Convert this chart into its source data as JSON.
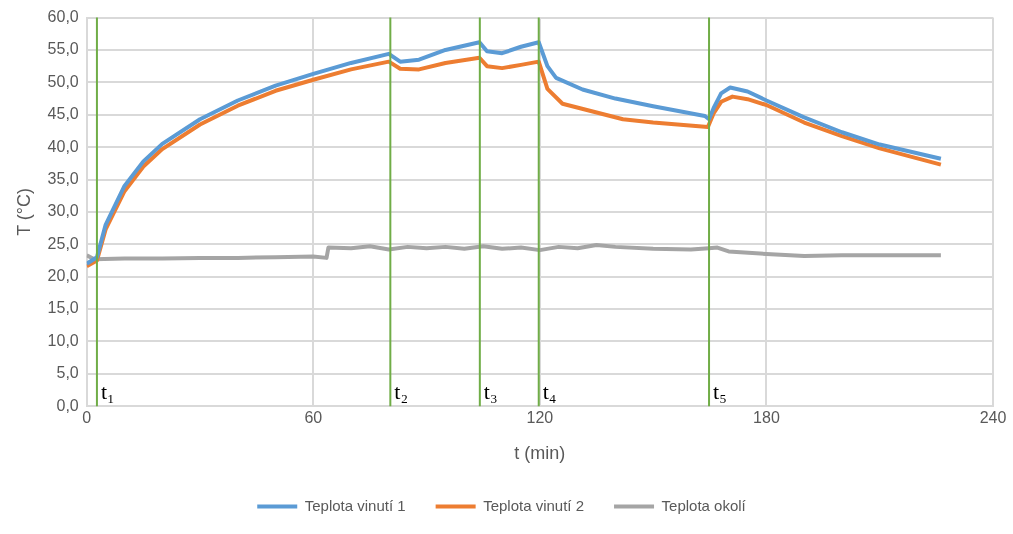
{
  "chart_data": {
    "type": "line",
    "xlabel": "t (min)",
    "ylabel": "T (°C)",
    "xlim": [
      0,
      240
    ],
    "xticks": [
      0,
      60,
      120,
      180,
      240
    ],
    "ylim": [
      0,
      60
    ],
    "yticks": [
      {
        "value": 0,
        "label": "0,0"
      },
      {
        "value": 5,
        "label": "5,0"
      },
      {
        "value": 10,
        "label": "10,0"
      },
      {
        "value": 15,
        "label": "15,0"
      },
      {
        "value": 20,
        "label": "20,0"
      },
      {
        "value": 25,
        "label": "25,0"
      },
      {
        "value": 30,
        "label": "30,0"
      },
      {
        "value": 35,
        "label": "35,0"
      },
      {
        "value": 40,
        "label": "40,0"
      },
      {
        "value": 45,
        "label": "45,0"
      },
      {
        "value": 50,
        "label": "50,0"
      },
      {
        "value": 55,
        "label": "55,0"
      },
      {
        "value": 60,
        "label": "60,0"
      }
    ],
    "grid": true,
    "legend": "bottom",
    "marker": "none",
    "line_style": "solid",
    "series": [
      {
        "name": "Teplota vinutí 1",
        "color": "#5b9bd5",
        "x": [
          0,
          2.7,
          5,
          10,
          15,
          20,
          30,
          40,
          50,
          60,
          70,
          80,
          83,
          88,
          95,
          104,
          106,
          110,
          115,
          119.7,
          122,
          124.3,
          131.3,
          140,
          150,
          163.7,
          164.8,
          166,
          168,
          170.4,
          175,
          180,
          190,
          200,
          210,
          226.2
        ],
        "values": [
          22,
          23,
          28,
          34,
          37.8,
          40.5,
          44.3,
          47.2,
          49.5,
          51.3,
          53,
          54.4,
          53.2,
          53.5,
          55,
          56.2,
          54.8,
          54.5,
          55.5,
          56.2,
          52.5,
          50.7,
          48.9,
          47.5,
          46.3,
          44.8,
          44.3,
          46,
          48.3,
          49.2,
          48.6,
          47.2,
          44.6,
          42.3,
          40.4,
          38.2
        ]
      },
      {
        "name": "Teplota vinutí 2",
        "color": "#ed7d31",
        "x": [
          0,
          2.7,
          5,
          10,
          15,
          20,
          30,
          40,
          50,
          60,
          70,
          80,
          83,
          88,
          95,
          104,
          106,
          110,
          115,
          119.7,
          122,
          126,
          142,
          150,
          164.5,
          166,
          168,
          171,
          175,
          180,
          190,
          200,
          210,
          226.2
        ],
        "values": [
          21.6,
          22.5,
          27.3,
          33.2,
          37,
          39.7,
          43.5,
          46.4,
          48.7,
          50.4,
          52,
          53.2,
          52.1,
          52,
          53,
          53.8,
          52.5,
          52.2,
          52.7,
          53.2,
          49,
          46.7,
          44.3,
          43.8,
          43.1,
          45.2,
          47,
          47.8,
          47.4,
          46.5,
          43.8,
          41.7,
          39.8,
          37.3
        ]
      },
      {
        "name": "Teplota okolí",
        "color": "#a5a5a5",
        "x": [
          0,
          2,
          10,
          20,
          30,
          40,
          50,
          60,
          63.5,
          64,
          70,
          75,
          80,
          85,
          90,
          95,
          100,
          105,
          110,
          115,
          120,
          125,
          130,
          135,
          140,
          150,
          160,
          164.8,
          167,
          170,
          180,
          190,
          200,
          226.2
        ],
        "values": [
          23.3,
          22.7,
          22.8,
          22.8,
          22.9,
          22.9,
          23,
          23.1,
          22.9,
          24.5,
          24.4,
          24.7,
          24.2,
          24.6,
          24.4,
          24.6,
          24.3,
          24.7,
          24.3,
          24.5,
          24.1,
          24.6,
          24.4,
          24.9,
          24.6,
          24.3,
          24.2,
          24.4,
          24.5,
          23.9,
          23.5,
          23.2,
          23.3,
          23.3
        ]
      }
    ],
    "ref_lines": [
      {
        "axis": "x",
        "value": 2.7,
        "label": "t₁",
        "color": "#70ad47"
      },
      {
        "axis": "x",
        "value": 80.4,
        "label": "t₂",
        "color": "#70ad47"
      },
      {
        "axis": "x",
        "value": 104.1,
        "label": "t₃",
        "color": "#70ad47"
      },
      {
        "axis": "x",
        "value": 119.7,
        "label": "t₄",
        "color": "#70ad47"
      },
      {
        "axis": "x",
        "value": 164.8,
        "label": "t₅",
        "color": "#70ad47"
      }
    ]
  }
}
